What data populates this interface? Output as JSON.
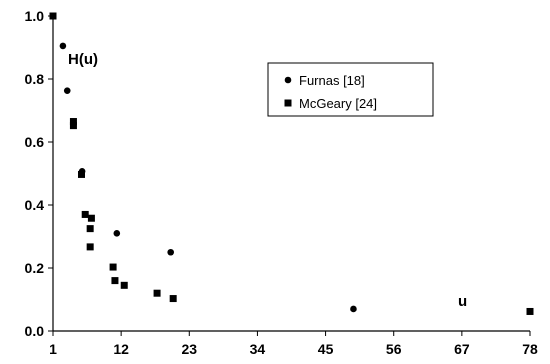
{
  "chart_data": {
    "type": "scatter",
    "title": "",
    "xlabel": "",
    "ylabel": "",
    "annotations": [
      {
        "text": "H(u)",
        "role": "y-quantity"
      },
      {
        "text": "u",
        "role": "x-quantity"
      }
    ],
    "x_tick_labels": [
      "1",
      "12",
      "23",
      "34",
      "45",
      "56",
      "67",
      "78"
    ],
    "y_tick_labels": [
      "0.0",
      "0.2",
      "0.4",
      "0.6",
      "0.8",
      "1.0"
    ],
    "xlim": [
      1,
      78
    ],
    "ylim": [
      0,
      1
    ],
    "grid": false,
    "legend_position": "top-right",
    "series": [
      {
        "name": "Furnas [18]",
        "marker": "circle",
        "color": "#000000",
        "points": [
          [
            1,
            1.0
          ],
          [
            2.6,
            0.905
          ],
          [
            3.3,
            0.763
          ],
          [
            4.3,
            0.66
          ],
          [
            5.7,
            0.507
          ],
          [
            11.3,
            0.31
          ],
          [
            20,
            0.25
          ],
          [
            49.5,
            0.07
          ]
        ]
      },
      {
        "name": "McGeary [24]",
        "marker": "square",
        "color": "#000000",
        "points": [
          [
            1,
            1.0
          ],
          [
            4.3,
            0.665
          ],
          [
            4.3,
            0.652
          ],
          [
            5.6,
            0.497
          ],
          [
            6.2,
            0.37
          ],
          [
            7.2,
            0.358
          ],
          [
            7.0,
            0.325
          ],
          [
            7.0,
            0.267
          ],
          [
            10.7,
            0.203
          ],
          [
            11.0,
            0.16
          ],
          [
            12.5,
            0.145
          ],
          [
            17.8,
            0.12
          ],
          [
            20.4,
            0.103
          ],
          [
            78,
            0.062
          ]
        ]
      }
    ]
  }
}
